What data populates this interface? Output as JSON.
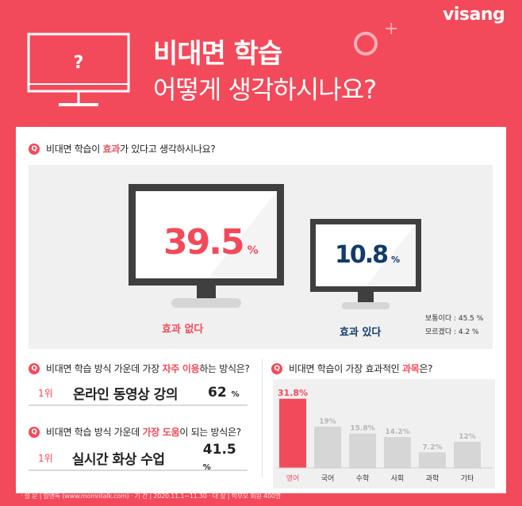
{
  "brand": "visang",
  "title_line1": "비대면 학습",
  "title_line2": "어떻게 생각하시나요?",
  "hero_monitor_symbol": "?",
  "q1": {
    "badge": "Q",
    "text_before": "비대면 학습이 ",
    "text_highlight": "효과",
    "text_after": "가 있다고 생각하시나요?",
    "no_effect": {
      "value": "39.5",
      "unit": "%",
      "label": "효과 없다"
    },
    "effect": {
      "value": "10.8",
      "unit": "%",
      "label": "효과 있다"
    },
    "note1": "보통이다 : 45.5 %",
    "note2": "모르겠다 : 4.2 %"
  },
  "q2": {
    "badge": "Q",
    "text_before": "비대면 학습 방식 가운데 가장 ",
    "text_highlight": "자주 이용",
    "text_after": "하는 방식은?",
    "rank": "1위",
    "answer": "온라인 동영상 강의",
    "value": "62",
    "unit": "%"
  },
  "q3": {
    "badge": "Q",
    "text_before": "비대면 학습 방식 가운데 ",
    "text_highlight": "가장 도움",
    "text_after": "이 되는 방식은?",
    "rank": "1위",
    "answer": "실시간 화상 수업",
    "value": "41.5",
    "unit": "%"
  },
  "q4": {
    "badge": "Q",
    "text_before": "비대면 학습이 가장 효과적인 ",
    "text_highlight": "과목",
    "text_after": "은?"
  },
  "chart_data": {
    "type": "bar",
    "categories": [
      "영어",
      "국어",
      "수학",
      "사회",
      "과학",
      "기타"
    ],
    "values": [
      31.8,
      19,
      15.8,
      14.2,
      7.2,
      12
    ],
    "value_labels": [
      "31.8%",
      "19%",
      "15.8%",
      "14.2%",
      "7.2%",
      "12%"
    ],
    "ylim": [
      0,
      35
    ],
    "highlight_index": 0,
    "colors": {
      "highlight": "#f24a5a",
      "normal": "#d6d6d6"
    }
  },
  "footer": "· 설 문 | 맘앤톡 (www.momntalk.com) · 기 간 | 2020.11.1~11.30 · 대 상 | 학부모 회원 400명",
  "colors": {
    "bg": "#f24a5a",
    "navy": "#123a6a",
    "monitor": "#3f3f3f",
    "accent": "#f24a5a"
  }
}
